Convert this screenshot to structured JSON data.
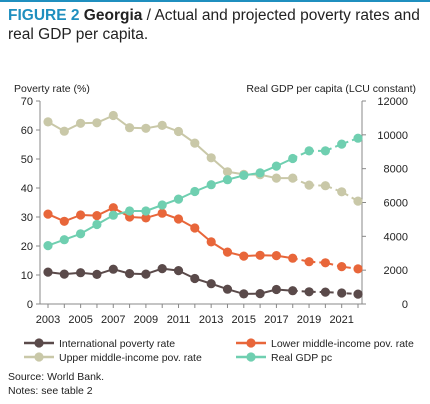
{
  "header": {
    "figure_label": "FIGURE 2",
    "country": "Georgia",
    "separator": " / ",
    "subtitle": "Actual and projected poverty rates and real GDP per capita."
  },
  "chart_data": {
    "type": "line",
    "left_axis_label": "Poverty rate (%)",
    "right_axis_label": "Real GDP per capita (LCU constant)",
    "left_ylim": [
      0,
      70
    ],
    "right_ylim": [
      0,
      12000
    ],
    "left_ticks": [
      0,
      10,
      20,
      30,
      40,
      50,
      60,
      70
    ],
    "right_ticks": [
      0,
      2000,
      4000,
      6000,
      8000,
      10000,
      12000
    ],
    "x": [
      2003,
      2004,
      2005,
      2006,
      2007,
      2008,
      2009,
      2010,
      2011,
      2012,
      2013,
      2014,
      2015,
      2016,
      2017,
      2018,
      2019,
      2020,
      2021,
      2022
    ],
    "x_tick_labels": [
      "2003",
      "2005",
      "2007",
      "2009",
      "2011",
      "2013",
      "2015",
      "2017",
      "2019",
      "2021"
    ],
    "actual_through": 2018,
    "grid": false,
    "series": [
      {
        "name": "International poverty rate",
        "axis": "left",
        "color": "#5a4a4a",
        "values": [
          11.0,
          10.3,
          10.8,
          10.2,
          12.0,
          10.5,
          10.3,
          12.2,
          11.5,
          8.8,
          7.0,
          5.1,
          3.5,
          3.6,
          5.0,
          4.6,
          4.2,
          4.1,
          3.8,
          3.4
        ]
      },
      {
        "name": "Lower middle-income pov. rate",
        "axis": "left",
        "color": "#e8663a",
        "values": [
          31.0,
          28.5,
          30.7,
          30.5,
          33.2,
          30.0,
          29.7,
          31.3,
          29.3,
          26.2,
          21.4,
          17.9,
          16.5,
          16.8,
          16.7,
          15.8,
          14.6,
          14.2,
          12.9,
          12.1
        ]
      },
      {
        "name": "Upper middle-income pov. rate",
        "axis": "left",
        "color": "#c9c8a8",
        "values": [
          62.8,
          59.6,
          62.3,
          62.5,
          65.0,
          60.8,
          60.6,
          61.6,
          59.5,
          55.5,
          50.4,
          45.6,
          44.7,
          44.6,
          43.4,
          43.4,
          41.0,
          40.8,
          38.7,
          35.5
        ]
      },
      {
        "name": "Real GDP pc",
        "axis": "right",
        "color": "#6fcfb0",
        "values": [
          3450,
          3800,
          4150,
          4700,
          5250,
          5500,
          5500,
          5850,
          6200,
          6650,
          7050,
          7350,
          7600,
          7750,
          8150,
          8600,
          9050,
          9050,
          9450,
          9800
        ]
      }
    ]
  },
  "legend": [
    {
      "label": "International poverty rate",
      "color": "#5a4a4a"
    },
    {
      "label": "Lower middle-income pov. rate",
      "color": "#e8663a"
    },
    {
      "label": "Upper middle-income pov. rate",
      "color": "#c9c8a8"
    },
    {
      "label": "Real GDP pc",
      "color": "#6fcfb0"
    }
  ],
  "footer": {
    "source": "Source: World Bank.",
    "notes": "Notes: see table 2"
  }
}
